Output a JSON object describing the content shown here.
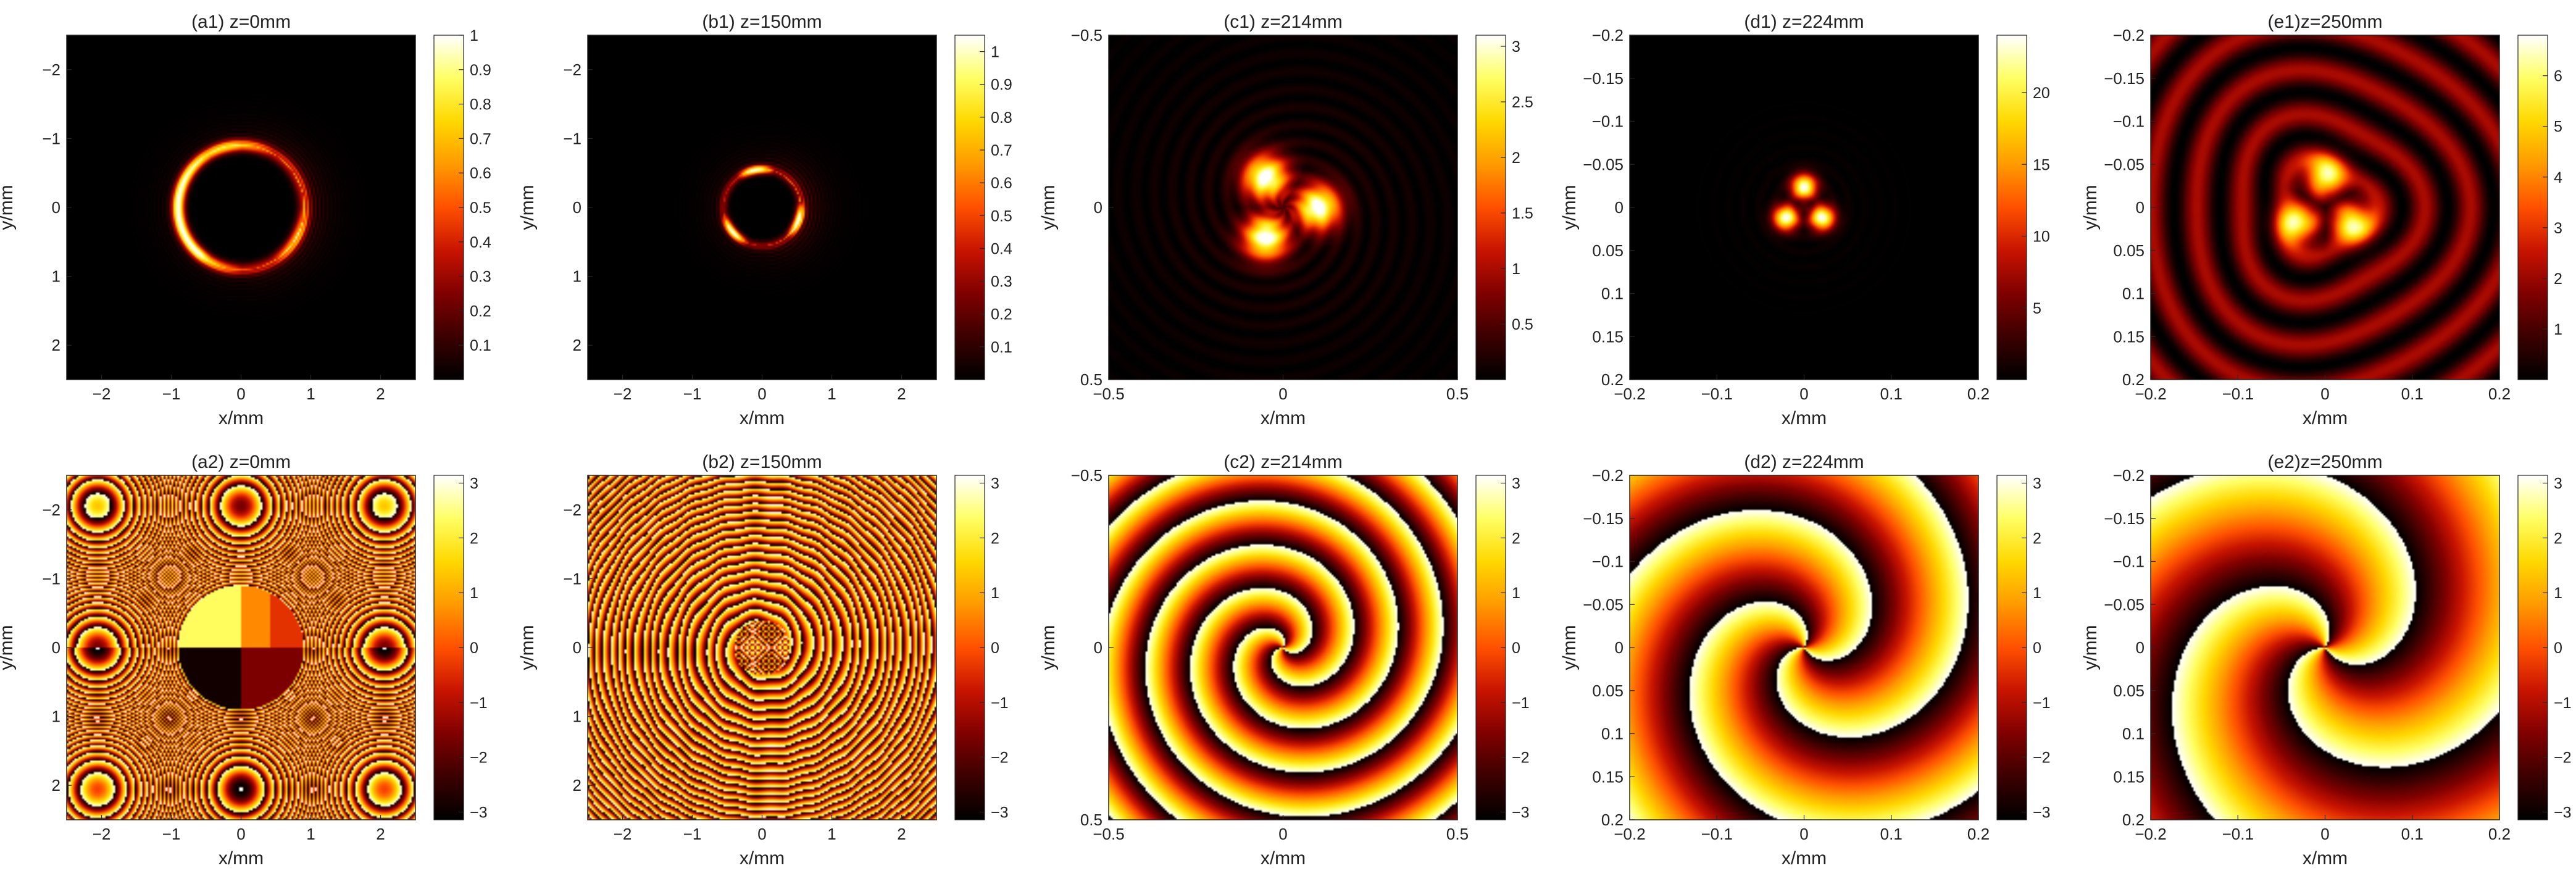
{
  "colors": {
    "colormap": [
      "#000000",
      "#3c0000",
      "#800000",
      "#c81400",
      "#ff5000",
      "#ff9a00",
      "#ffd800",
      "#ffff64",
      "#ffffff"
    ],
    "axis": "#262626"
  },
  "chart_data": [
    {
      "id": "a1",
      "type": "heatmap",
      "title": "(a1) z=0mm",
      "xlabel": "x/mm",
      "ylabel": "y/mm",
      "xlim": [
        -2.5,
        2.5
      ],
      "ylim": [
        -2.5,
        2.5
      ],
      "y_reversed": true,
      "xticks": [
        "−2",
        "−1",
        "0",
        "1",
        "2"
      ],
      "xtick_values": [
        -2,
        -1,
        0,
        1,
        2
      ],
      "yticks": [
        "−2",
        "−1",
        "0",
        "1",
        "2"
      ],
      "ytick_values": [
        -2,
        -1,
        0,
        1,
        2
      ],
      "clim": [
        0,
        1
      ],
      "cbticks": [
        "0.1",
        "0.2",
        "0.3",
        "0.4",
        "0.5",
        "0.6",
        "0.7",
        "0.8",
        "0.9",
        "1"
      ],
      "cbtick_values": [
        0.1,
        0.2,
        0.3,
        0.4,
        0.5,
        0.6,
        0.7,
        0.8,
        0.9,
        1
      ],
      "field": "intensity",
      "pattern": "ring",
      "ring_radius": 0.9,
      "ring_width": 0.1,
      "bright_side": "left",
      "outer_fringes": true
    },
    {
      "id": "b1",
      "type": "heatmap",
      "title": "(b1) z=150mm",
      "xlabel": "x/mm",
      "ylabel": "y/mm",
      "xlim": [
        -2.5,
        2.5
      ],
      "ylim": [
        -2.5,
        2.5
      ],
      "y_reversed": true,
      "xticks": [
        "−2",
        "−1",
        "0",
        "1",
        "2"
      ],
      "xtick_values": [
        -2,
        -1,
        0,
        1,
        2
      ],
      "yticks": [
        "−2",
        "−1",
        "0",
        "1",
        "2"
      ],
      "ytick_values": [
        -2,
        -1,
        0,
        1,
        2
      ],
      "clim": [
        0,
        1.05
      ],
      "cbticks": [
        "0.1",
        "0.2",
        "0.3",
        "0.4",
        "0.5",
        "0.6",
        "0.7",
        "0.8",
        "0.9",
        "1"
      ],
      "cbtick_values": [
        0.1,
        0.2,
        0.3,
        0.4,
        0.5,
        0.6,
        0.7,
        0.8,
        0.9,
        1
      ],
      "field": "intensity",
      "pattern": "ring",
      "ring_radius": 0.55,
      "ring_width": 0.07,
      "bright_side": "three-arc",
      "outer_fringes": true
    },
    {
      "id": "c1",
      "type": "heatmap",
      "title": "(c1) z=214mm",
      "xlabel": "x/mm",
      "ylabel": "y/mm",
      "xlim": [
        -0.5,
        0.5
      ],
      "ylim": [
        -0.5,
        0.5
      ],
      "y_reversed": true,
      "xticks": [
        "−0.5",
        "0",
        "0.5"
      ],
      "xtick_values": [
        -0.5,
        0,
        0.5
      ],
      "yticks": [
        "−0.5",
        "0",
        "0.5"
      ],
      "ytick_values": [
        -0.5,
        0,
        0.5
      ],
      "clim": [
        0,
        3.1
      ],
      "cbticks": [
        "0.5",
        "1",
        "1.5",
        "2",
        "2.5",
        "3"
      ],
      "cbtick_values": [
        0.5,
        1,
        1.5,
        2,
        2.5,
        3
      ],
      "field": "intensity",
      "pattern": "three-lobe",
      "lobe_radius": 0.1,
      "lobe_size": 0.045
    },
    {
      "id": "d1",
      "type": "heatmap",
      "title": "(d1) z=224mm",
      "xlabel": "x/mm",
      "ylabel": "y/mm",
      "xlim": [
        -0.2,
        0.2
      ],
      "ylim": [
        -0.2,
        0.2
      ],
      "y_reversed": true,
      "xticks": [
        "−0.2",
        "−0.1",
        "0",
        "0.1",
        "0.2"
      ],
      "xtick_values": [
        -0.2,
        -0.1,
        0,
        0.1,
        0.2
      ],
      "yticks": [
        "−0.2",
        "−0.15",
        "−0.1",
        "−0.05",
        "0",
        "0.05",
        "0.1",
        "0.15",
        "0.2"
      ],
      "ytick_values": [
        -0.2,
        -0.15,
        -0.1,
        -0.05,
        0,
        0.05,
        0.1,
        0.15,
        0.2
      ],
      "clim": [
        0,
        24
      ],
      "cbticks": [
        "5",
        "10",
        "15",
        "20"
      ],
      "cbtick_values": [
        5,
        10,
        15,
        20
      ],
      "field": "intensity",
      "pattern": "three-spot",
      "spot_radius": 0.024,
      "spot_size": 0.01
    },
    {
      "id": "e1",
      "type": "heatmap",
      "title": "(e1)z=250mm",
      "xlabel": "x/mm",
      "ylabel": "y/mm",
      "xlim": [
        -0.2,
        0.2
      ],
      "ylim": [
        -0.2,
        0.2
      ],
      "y_reversed": true,
      "xticks": [
        "−0.2",
        "−0.1",
        "0",
        "0.1",
        "0.2"
      ],
      "xtick_values": [
        -0.2,
        -0.1,
        0,
        0.1,
        0.2
      ],
      "yticks": [
        "−0.2",
        "−0.15",
        "−0.1",
        "−0.05",
        "0",
        "0.05",
        "0.1",
        "0.15",
        "0.2"
      ],
      "ytick_values": [
        -0.2,
        -0.15,
        -0.1,
        -0.05,
        0,
        0.05,
        0.1,
        0.15,
        0.2
      ],
      "clim": [
        0,
        6.8
      ],
      "cbticks": [
        "1",
        "2",
        "3",
        "4",
        "5",
        "6"
      ],
      "cbtick_values": [
        1,
        2,
        3,
        4,
        5,
        6
      ],
      "field": "intensity",
      "pattern": "three-spot-rings",
      "spot_radius": 0.035,
      "spot_size": 0.016
    },
    {
      "id": "a2",
      "type": "heatmap",
      "title": "(a2) z=0mm",
      "xlabel": "x/mm",
      "ylabel": "y/mm",
      "xlim": [
        -2.5,
        2.5
      ],
      "ylim": [
        -2.5,
        2.5
      ],
      "y_reversed": true,
      "xticks": [
        "−2",
        "−1",
        "0",
        "1",
        "2"
      ],
      "xtick_values": [
        -2,
        -1,
        0,
        1,
        2
      ],
      "yticks": [
        "−2",
        "−1",
        "0",
        "1",
        "2"
      ],
      "ytick_values": [
        -2,
        -1,
        0,
        1,
        2
      ],
      "clim": [
        -3.1416,
        3.1416
      ],
      "cbticks": [
        "−3",
        "−2",
        "−1",
        "0",
        "1",
        "2",
        "3"
      ],
      "cbtick_values": [
        -3,
        -2,
        -1,
        0,
        1,
        2,
        3
      ],
      "field": "phase",
      "pattern": "sector-disk",
      "disk_radius": 0.9
    },
    {
      "id": "b2",
      "type": "heatmap",
      "title": "(b2) z=150mm",
      "xlabel": "x/mm",
      "ylabel": "y/mm",
      "xlim": [
        -2.5,
        2.5
      ],
      "ylim": [
        -2.5,
        2.5
      ],
      "y_reversed": true,
      "xticks": [
        "−2",
        "−1",
        "0",
        "1",
        "2"
      ],
      "xtick_values": [
        -2,
        -1,
        0,
        1,
        2
      ],
      "yticks": [
        "−2",
        "−1",
        "0",
        "1",
        "2"
      ],
      "ytick_values": [
        -2,
        -1,
        0,
        1,
        2
      ],
      "clim": [
        -3.1416,
        3.1416
      ],
      "cbticks": [
        "−3",
        "−2",
        "−1",
        "0",
        "1",
        "2",
        "3"
      ],
      "cbtick_values": [
        -3,
        -2,
        -1,
        0,
        1,
        2,
        3
      ],
      "field": "phase",
      "pattern": "dense-rings",
      "ring_period": 0.18
    },
    {
      "id": "c2",
      "type": "heatmap",
      "title": "(c2) z=214mm",
      "xlabel": "x/mm",
      "ylabel": "y/mm",
      "xlim": [
        -0.5,
        0.5
      ],
      "ylim": [
        -0.5,
        0.5
      ],
      "y_reversed": true,
      "xticks": [
        "−0.5",
        "0",
        "0.5"
      ],
      "xtick_values": [
        -0.5,
        0,
        0.5
      ],
      "yticks": [
        "−0.5",
        "0",
        "0.5"
      ],
      "ytick_values": [
        -0.5,
        0,
        0.5
      ],
      "clim": [
        -3.1416,
        3.1416
      ],
      "cbticks": [
        "−3",
        "−2",
        "−1",
        "0",
        "1",
        "2",
        "3"
      ],
      "cbtick_values": [
        -3,
        -2,
        -1,
        0,
        1,
        2,
        3
      ],
      "field": "phase",
      "pattern": "vortex-rings",
      "ring_period": 0.13
    },
    {
      "id": "d2",
      "type": "heatmap",
      "title": "(d2) z=224mm",
      "xlabel": "x/mm",
      "ylabel": "y/mm",
      "xlim": [
        -0.2,
        0.2
      ],
      "ylim": [
        -0.2,
        0.2
      ],
      "y_reversed": true,
      "xticks": [
        "−0.2",
        "−0.1",
        "0",
        "0.1",
        "0.2"
      ],
      "xtick_values": [
        -0.2,
        -0.1,
        0,
        0.1,
        0.2
      ],
      "yticks": [
        "−0.2",
        "−0.15",
        "−0.1",
        "−0.05",
        "0",
        "0.05",
        "0.1",
        "0.15",
        "0.2"
      ],
      "ytick_values": [
        -0.2,
        -0.15,
        -0.1,
        -0.05,
        0,
        0.05,
        0.1,
        0.15,
        0.2
      ],
      "clim": [
        -3.1416,
        3.1416
      ],
      "cbticks": [
        "−3",
        "−2",
        "−1",
        "0",
        "1",
        "2",
        "3"
      ],
      "cbtick_values": [
        -3,
        -2,
        -1,
        0,
        1,
        2,
        3
      ],
      "field": "phase",
      "pattern": "vortex-rings",
      "ring_period": 0.12
    },
    {
      "id": "e2",
      "type": "heatmap",
      "title": "(e2)z=250mm",
      "xlabel": "x/mm",
      "ylabel": "y/mm",
      "xlim": [
        -0.2,
        0.2
      ],
      "ylim": [
        -0.2,
        0.2
      ],
      "y_reversed": true,
      "xticks": [
        "−0.2",
        "−0.1",
        "0",
        "0.1",
        "0.2"
      ],
      "xtick_values": [
        -0.2,
        -0.1,
        0,
        0.1,
        0.2
      ],
      "yticks": [
        "−0.2",
        "−0.15",
        "−0.1",
        "−0.05",
        "0",
        "0.05",
        "0.1",
        "0.15",
        "0.2"
      ],
      "ytick_values": [
        -0.2,
        -0.15,
        -0.1,
        -0.05,
        0,
        0.05,
        0.1,
        0.15,
        0.2
      ],
      "clim": [
        -3.1416,
        3.1416
      ],
      "cbticks": [
        "−3",
        "−2",
        "−1",
        "0",
        "1",
        "2",
        "3"
      ],
      "cbtick_values": [
        -3,
        -2,
        -1,
        0,
        1,
        2,
        3
      ],
      "field": "phase",
      "pattern": "vortex-rings",
      "ring_period": 0.16
    }
  ]
}
